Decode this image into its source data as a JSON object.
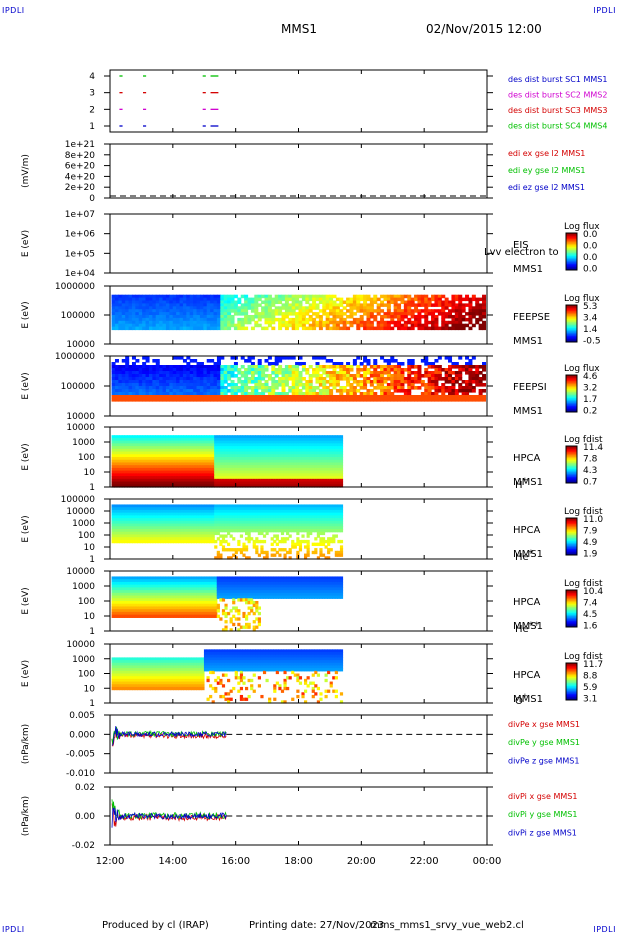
{
  "corners": {
    "tl": "IPDLI",
    "tr": "IPDLI",
    "bl": "IPDLI",
    "br": "IPDLI"
  },
  "header": {
    "spacecraft": "MMS1",
    "datetime": "02/Nov/2015 12:00"
  },
  "footer": {
    "produced": "Produced by cl (IRAP)",
    "printing": "Printing date: 27/Nov/2023",
    "file": "mms_mms1_srvy_vue_web2.cl"
  },
  "colors": {
    "red": "#d40000",
    "green": "#00c000",
    "blue": "#0000c8",
    "magenta": "#d000d0"
  },
  "chart_data": {
    "type": "heatmap",
    "x_ticks": [
      "12:00",
      "14:00",
      "16:00",
      "18:00",
      "20:00",
      "22:00",
      "00:00"
    ],
    "x_hours": [
      12,
      14,
      16,
      18,
      20,
      22,
      24
    ],
    "panels": [
      {
        "kind": "availability",
        "ylabel": "",
        "yticks": [
          "4",
          "3",
          "2",
          "1"
        ],
        "legend": [
          {
            "label": "des dist burst SC1 MMS1",
            "color": "#0000c8"
          },
          {
            "label": "des dist burst SC2 MMS2",
            "color": "#d000d0"
          },
          {
            "label": "des dist burst SC3 MMS3",
            "color": "#d40000"
          },
          {
            "label": "des dist burst SC4 MMS4",
            "color": "#00c000"
          }
        ],
        "bursts": [
          [
            12.3,
            12.4
          ],
          [
            13.05,
            13.15
          ],
          [
            14.95,
            15.05
          ],
          [
            15.2,
            15.45
          ]
        ]
      },
      {
        "kind": "line",
        "ylabel": "(mV/m)",
        "yticks": [
          "1e+21",
          "8e+20",
          "6e+20",
          "4e+20",
          "2e+20",
          "0"
        ],
        "legend": [
          {
            "label": "edi ex gse l2 MMS1",
            "color": "#d40000"
          },
          {
            "label": "edi ey gse l2 MMS1",
            "color": "#00c000"
          },
          {
            "label": "edi ez gse l2 MMS1",
            "color": "#0000c8"
          }
        ]
      },
      {
        "kind": "spectro",
        "ylabel": "E (eV)",
        "yticks": [
          "1e+07",
          "1e+06",
          "1e+05",
          "1e+04"
        ],
        "right_labels": [
          "EIS",
          "MMS1"
        ],
        "overlay_text": "Lvv electron to",
        "cbar_title": "Log flux",
        "cbar_ticks": [
          "0.0",
          "0.0",
          "0.0",
          "0.0"
        ],
        "data_end_hour": 12
      },
      {
        "kind": "spectro",
        "ylabel": "E (eV)",
        "yticks": [
          "1000000",
          "100000",
          "10000"
        ],
        "right_labels": [
          "FEEPSE",
          "MMS1"
        ],
        "cbar_title": "Log flux",
        "cbar_ticks": [
          "5.3",
          "3.4",
          "1.4",
          "-0.5"
        ],
        "data_end_hour": 24
      },
      {
        "kind": "spectro",
        "ylabel": "E (eV)",
        "yticks": [
          "1000000",
          "100000",
          "10000"
        ],
        "right_labels": [
          "FEEPSI",
          "MMS1"
        ],
        "cbar_title": "Log flux",
        "cbar_ticks": [
          "4.6",
          "3.2",
          "1.7",
          "0.2"
        ],
        "data_end_hour": 24
      },
      {
        "kind": "spectro",
        "ylabel": "E (eV)",
        "yticks": [
          "10000",
          "1000",
          "100",
          "10",
          "1"
        ],
        "right_labels": [
          "HPCA",
          "MMS1"
        ],
        "species": "H",
        "charge": "+",
        "cbar_title": "Log fdist",
        "cbar_ticks": [
          "11.4",
          "7.8",
          "4.3",
          "0.7"
        ],
        "data_end_hour": 19.4
      },
      {
        "kind": "spectro",
        "ylabel": "E (eV)",
        "yticks": [
          "100000",
          "10000",
          "1000",
          "100",
          "10",
          "1"
        ],
        "right_labels": [
          "HPCA",
          "MMS1"
        ],
        "species": "He",
        "charge": "+",
        "cbar_title": "Log fdist",
        "cbar_ticks": [
          "11.0",
          "7.9",
          "4.9",
          "1.9"
        ],
        "data_end_hour": 19.4
      },
      {
        "kind": "spectro",
        "ylabel": "E (eV)",
        "yticks": [
          "10000",
          "1000",
          "100",
          "10",
          "1"
        ],
        "right_labels": [
          "HPCA",
          "MMS1"
        ],
        "species": "He",
        "charge": "++",
        "cbar_title": "Log fdist",
        "cbar_ticks": [
          "10.4",
          "7.4",
          "4.5",
          "1.6"
        ],
        "data_end_hour": 19.4
      },
      {
        "kind": "spectro",
        "ylabel": "E (eV)",
        "yticks": [
          "10000",
          "1000",
          "100",
          "10",
          "1"
        ],
        "right_labels": [
          "HPCA",
          "MMS1"
        ],
        "species": "O",
        "charge": "+",
        "cbar_title": "Log fdist",
        "cbar_ticks": [
          "11.7",
          "8.8",
          "5.9",
          "3.1"
        ],
        "data_end_hour": 19.4
      },
      {
        "kind": "line",
        "ylabel": "(nPa/km)",
        "yticks": [
          "0.005",
          "0.000",
          "-0.005",
          "-0.010"
        ],
        "data_end_hour": 15.7,
        "legend": [
          {
            "label": "divPe x gse MMS1",
            "color": "#d40000"
          },
          {
            "label": "divPe y gse MMS1",
            "color": "#00c000"
          },
          {
            "label": "divPe z gse MMS1",
            "color": "#0000c8"
          }
        ]
      },
      {
        "kind": "line",
        "ylabel": "(nPa/km)",
        "yticks": [
          "0.02",
          "0.00",
          "-0.02"
        ],
        "data_end_hour": 15.7,
        "legend": [
          {
            "label": "divPi x gse MMS1",
            "color": "#d40000"
          },
          {
            "label": "divPi y gse MMS1",
            "color": "#00c000"
          },
          {
            "label": "divPi z gse MMS1",
            "color": "#0000c8"
          }
        ]
      }
    ]
  }
}
